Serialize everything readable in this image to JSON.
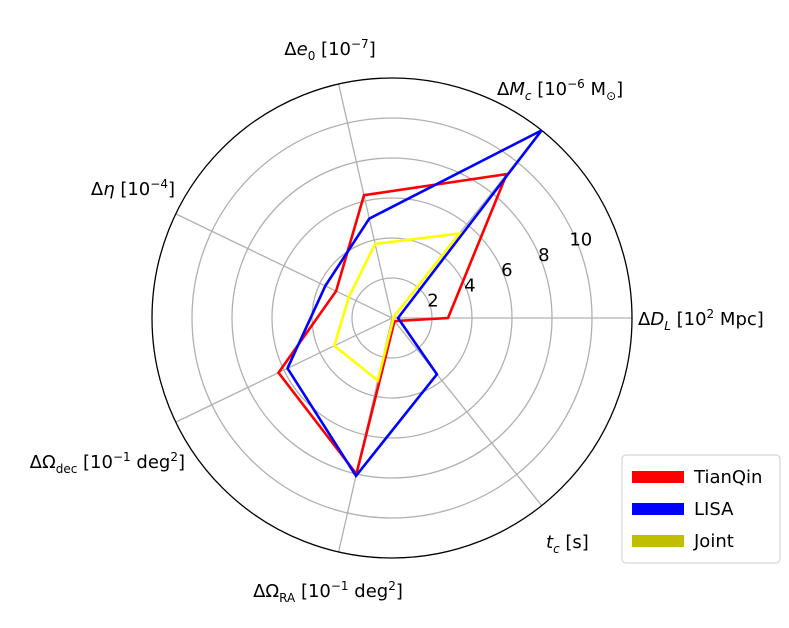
{
  "chart_data": {
    "type": "radar",
    "axes": [
      {
        "label": "ΔD_L [10^2 Mpc]",
        "parts": [
          [
            "Δ",
            ""
          ],
          [
            "D",
            "i"
          ],
          [
            "L",
            "sub-i"
          ],
          [
            " [10",
            ""
          ],
          [
            "2",
            "sup"
          ],
          [
            " Mpc]",
            ""
          ]
        ]
      },
      {
        "label": "ΔM_c [10^-6 M⊙]",
        "parts": [
          [
            "Δ",
            ""
          ],
          [
            "M",
            "i"
          ],
          [
            "c",
            "sub-i"
          ],
          [
            " [10",
            ""
          ],
          [
            "−6",
            "sup"
          ],
          [
            " M",
            ""
          ],
          [
            "⊙",
            "sub"
          ],
          [
            "]",
            ""
          ]
        ]
      },
      {
        "label": "Δe_0 [10^-7]",
        "parts": [
          [
            "Δ",
            ""
          ],
          [
            "e",
            "i"
          ],
          [
            "0",
            "sub"
          ],
          [
            " [10",
            ""
          ],
          [
            "−7",
            "sup"
          ],
          [
            "]",
            ""
          ]
        ]
      },
      {
        "label": "Δη [10^-4]",
        "parts": [
          [
            "Δ",
            ""
          ],
          [
            "η",
            "i"
          ],
          [
            " [10",
            ""
          ],
          [
            "−4",
            "sup"
          ],
          [
            "]",
            ""
          ]
        ]
      },
      {
        "label": "ΔΩ_dec [10^-1 deg^2]",
        "parts": [
          [
            "ΔΩ",
            ""
          ],
          [
            "dec",
            "sub"
          ],
          [
            " [10",
            ""
          ],
          [
            "−1",
            "sup"
          ],
          [
            " deg",
            ""
          ],
          [
            "2",
            "sup"
          ],
          [
            "]",
            ""
          ]
        ]
      },
      {
        "label": "ΔΩ_RA [10^-1 deg^2]",
        "parts": [
          [
            "ΔΩ",
            ""
          ],
          [
            "RA",
            "sub"
          ],
          [
            " [10",
            ""
          ],
          [
            "−1",
            "sup"
          ],
          [
            " deg",
            ""
          ],
          [
            "2",
            "sup"
          ],
          [
            "]",
            ""
          ]
        ]
      },
      {
        "label": "t_c [s]",
        "parts": [
          [
            "t",
            "i"
          ],
          [
            "c",
            "sub-i"
          ],
          [
            " [s]",
            ""
          ]
        ]
      }
    ],
    "radial_ticks": [
      "2",
      "4",
      "6",
      "8",
      "10"
    ],
    "rlim": [
      0,
      12
    ],
    "series": [
      {
        "name": "TianQin",
        "color": "#ff0000",
        "values": [
          2.8,
          9.2,
          6.3,
          3.1,
          6.3,
          8.0,
          0.2
        ]
      },
      {
        "name": "LISA",
        "color": "#0000ff",
        "values": [
          0.3,
          12.0,
          5.1,
          3.7,
          5.8,
          8.1,
          3.6
        ]
      },
      {
        "name": "Joint",
        "color": "#ffff00",
        "legend_color": "#bfbf00",
        "values": [
          0.05,
          5.4,
          3.8,
          2.4,
          3.2,
          3.2,
          0.1
        ]
      }
    ],
    "grid": true,
    "legend_position": "lower-right"
  }
}
